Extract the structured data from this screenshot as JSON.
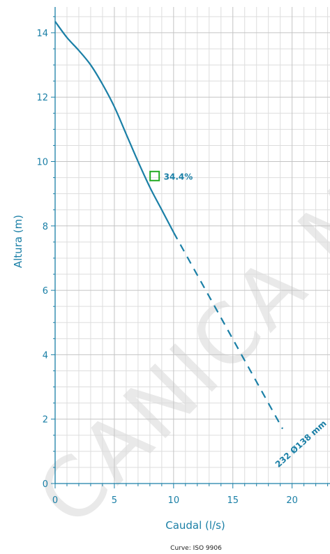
{
  "chart_data": {
    "type": "line",
    "xlabel": "Caudal (l/s)",
    "ylabel": "Altura (m)",
    "xlim": [
      0,
      23.2
    ],
    "ylim": [
      0,
      14.8
    ],
    "x_ticks": [
      0,
      5,
      10,
      15,
      20
    ],
    "y_ticks": [
      0,
      2,
      4,
      6,
      8,
      10,
      12,
      14
    ],
    "grid": true,
    "series": [
      {
        "name": "232 Ø138 mm",
        "line_style": "solid",
        "color": "#1a7fa6",
        "x": [
          0,
          1,
          2,
          3,
          4,
          5,
          6,
          7,
          8,
          9,
          10
        ],
        "y": [
          14.35,
          13.85,
          13.45,
          13.0,
          12.4,
          11.7,
          10.85,
          10.0,
          9.2,
          8.5,
          7.8
        ]
      },
      {
        "name": "",
        "line_style": "dashed",
        "color": "#1a7fa6",
        "x": [
          10,
          19.2
        ],
        "y": [
          7.8,
          1.7
        ]
      }
    ],
    "marker": {
      "x": 8.4,
      "y": 9.55,
      "label": "34.4%",
      "color": "#22aa22"
    },
    "curve_label": "232 Ø138 mm",
    "footer": "Curve: ISO 9906",
    "watermark": "CANICA M"
  }
}
